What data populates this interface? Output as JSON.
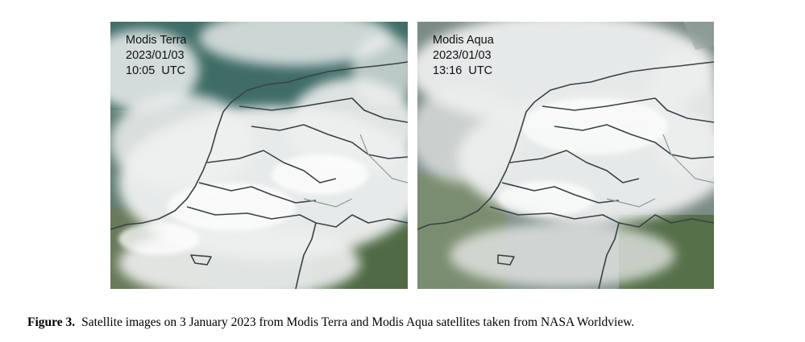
{
  "panels": [
    {
      "satellite": "Modis Terra",
      "date": "2023/01/03",
      "time": "10:05  UTC"
    },
    {
      "satellite": "Modis Aqua",
      "date": "2023/01/03",
      "time": "13:16  UTC"
    }
  ],
  "caption": {
    "label": "Figure 3.",
    "text": "Satellite images on 3 January 2023 from Modis Terra and Modis Aqua satellites taken from NASA Worldview."
  }
}
